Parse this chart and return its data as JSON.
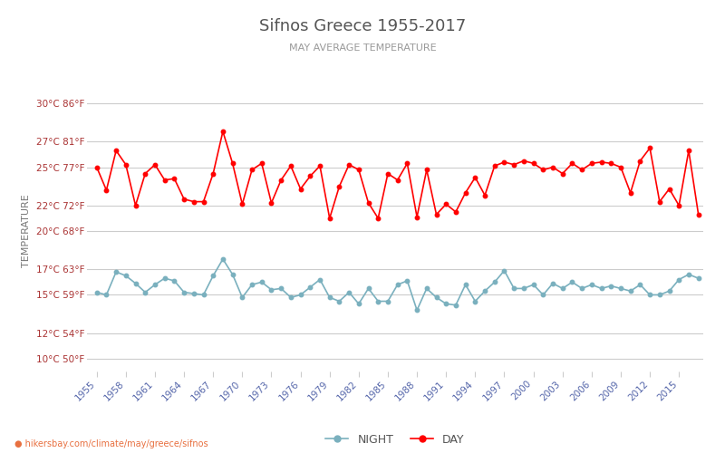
{
  "title": "Sifnos Greece 1955-2017",
  "subtitle": "MAY AVERAGE TEMPERATURE",
  "ylabel": "TEMPERATURE",
  "url_text": "● hikersbay.com/climate/may/greece/sifnos",
  "legend_night": "NIGHT",
  "legend_day": "DAY",
  "years": [
    1955,
    1956,
    1957,
    1958,
    1959,
    1960,
    1961,
    1962,
    1963,
    1964,
    1965,
    1966,
    1967,
    1968,
    1969,
    1970,
    1971,
    1972,
    1973,
    1974,
    1975,
    1976,
    1977,
    1978,
    1979,
    1980,
    1981,
    1982,
    1983,
    1984,
    1985,
    1986,
    1987,
    1988,
    1989,
    1990,
    1991,
    1992,
    1993,
    1994,
    1995,
    1996,
    1997,
    1998,
    1999,
    2000,
    2001,
    2002,
    2003,
    2004,
    2005,
    2006,
    2007,
    2008,
    2009,
    2010,
    2011,
    2012,
    2013,
    2014,
    2015,
    2016,
    2017
  ],
  "day_temps": [
    25.0,
    23.2,
    26.3,
    25.2,
    22.0,
    24.5,
    25.2,
    24.0,
    24.1,
    22.5,
    22.3,
    22.3,
    24.5,
    27.8,
    25.3,
    22.1,
    24.8,
    25.3,
    22.2,
    24.0,
    25.1,
    23.3,
    24.3,
    25.1,
    21.0,
    23.5,
    25.2,
    24.8,
    22.2,
    21.0,
    24.5,
    24.0,
    25.3,
    21.1,
    24.8,
    21.3,
    22.1,
    21.5,
    23.0,
    24.2,
    22.8,
    25.1,
    25.4,
    25.2,
    25.5,
    25.3,
    24.8,
    25.0,
    24.5,
    25.3,
    24.8,
    25.3,
    25.4,
    25.3,
    25.0,
    23.0,
    25.5,
    26.5,
    22.3,
    23.3,
    22.0,
    26.3,
    21.3
  ],
  "night_temps": [
    15.2,
    15.0,
    16.8,
    16.5,
    15.9,
    15.2,
    15.8,
    16.3,
    16.1,
    15.2,
    15.1,
    15.0,
    16.5,
    17.8,
    16.6,
    14.8,
    15.8,
    16.0,
    15.4,
    15.5,
    14.8,
    15.0,
    15.6,
    16.2,
    14.8,
    14.5,
    15.2,
    14.3,
    15.5,
    14.5,
    14.5,
    15.8,
    16.1,
    13.8,
    15.5,
    14.8,
    14.3,
    14.2,
    15.8,
    14.5,
    15.3,
    16.0,
    16.9,
    15.5,
    15.5,
    15.8,
    15.0,
    15.9,
    15.5,
    16.0,
    15.5,
    15.8,
    15.5,
    15.7,
    15.5,
    15.3,
    15.8,
    15.0,
    15.0,
    15.3,
    16.2,
    16.6,
    16.3
  ],
  "yticks_c": [
    10,
    12,
    15,
    17,
    20,
    22,
    25,
    27,
    30
  ],
  "yticks_f": [
    50,
    54,
    59,
    63,
    68,
    72,
    77,
    81,
    86
  ],
  "ylim": [
    9.0,
    31.0
  ],
  "xlim": [
    1954.0,
    2017.5
  ],
  "xtick_years": [
    1955,
    1958,
    1961,
    1964,
    1967,
    1970,
    1973,
    1976,
    1979,
    1982,
    1985,
    1988,
    1991,
    1994,
    1997,
    2000,
    2003,
    2006,
    2009,
    2012,
    2015
  ],
  "bg_color": "#ffffff",
  "grid_color": "#cccccc",
  "day_color": "#ff0000",
  "night_color": "#7ab0be",
  "title_color": "#555555",
  "subtitle_color": "#999999",
  "ylabel_color": "#777777",
  "ytick_color": "#aa3333",
  "xtick_color": "#5566aa",
  "url_color": "#e87040",
  "url_icon_color": "#e8a020"
}
